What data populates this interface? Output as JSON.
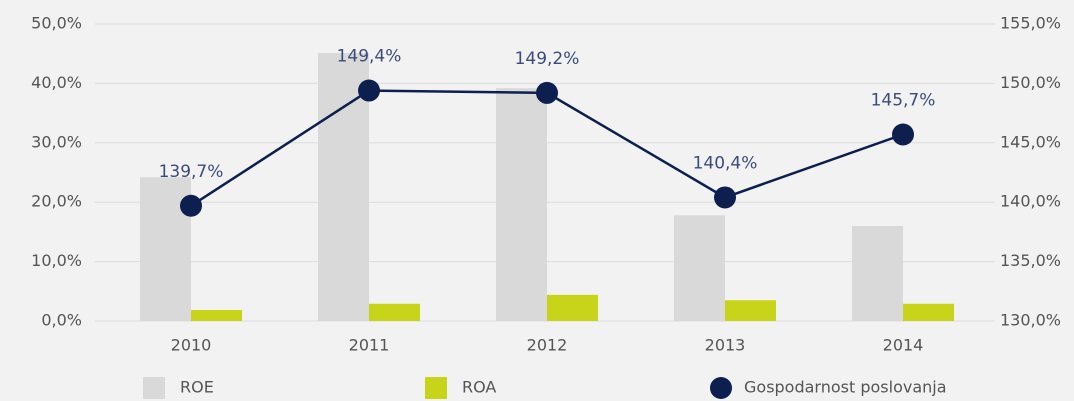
{
  "chart_data": {
    "type": "bar",
    "categories": [
      "2010",
      "2011",
      "2012",
      "2013",
      "2014"
    ],
    "series": [
      {
        "name": "ROE",
        "color": "#d9d9d9",
        "values": [
          24.2,
          45.1,
          39.2,
          17.8,
          16.0
        ]
      },
      {
        "name": "ROA",
        "color": "#c8d419",
        "values": [
          1.85,
          2.9,
          4.4,
          3.5,
          2.9
        ]
      },
      {
        "name": "Gospodarnost poslovanja",
        "color": "#0d1f4e",
        "type": "line",
        "axis": "y2",
        "values": [
          139.7,
          149.4,
          149.2,
          140.4,
          145.7
        ],
        "value_labels": [
          "139,7%",
          "149,4%",
          "149,2%",
          "140,4%",
          "145,7%"
        ]
      }
    ],
    "ylim": [
      0,
      50
    ],
    "yticks": [
      {
        "value": 0,
        "label": "0,0%"
      },
      {
        "value": 10,
        "label": "10,0%"
      },
      {
        "value": 20,
        "label": "20,0%"
      },
      {
        "value": 30,
        "label": "30,0%"
      },
      {
        "value": 40,
        "label": "40,0%"
      },
      {
        "value": 50,
        "label": "50,0%"
      }
    ],
    "y2lim": [
      130,
      155
    ],
    "y2ticks": [
      {
        "value": 130,
        "label": "130,0%"
      },
      {
        "value": 135,
        "label": "135,0%"
      },
      {
        "value": 140,
        "label": "140,0%"
      },
      {
        "value": 145,
        "label": "145,0%"
      },
      {
        "value": 150,
        "label": "150,0%"
      },
      {
        "value": 155,
        "label": "155,0%"
      }
    ],
    "grid": true,
    "legend": "bottom"
  }
}
